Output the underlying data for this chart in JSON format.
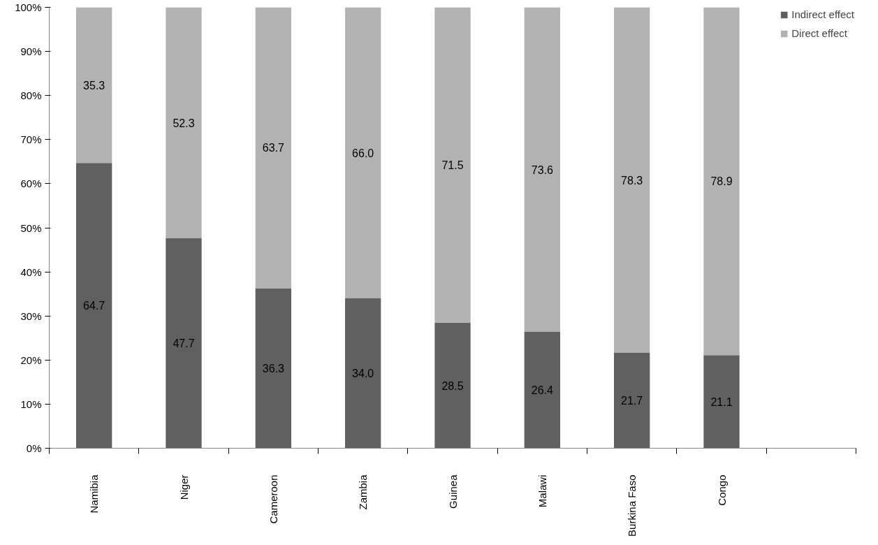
{
  "chart_data": {
    "type": "bar",
    "stacked": true,
    "categories": [
      "Namibia",
      "Niger",
      "Cameroon",
      "Zambia",
      "Guinea",
      "Malawi",
      "Burkina Faso",
      "Congo",
      null
    ],
    "series": [
      {
        "name": "Indirect effect",
        "color": "#606060",
        "values": [
          64.7,
          47.7,
          36.3,
          34.0,
          28.5,
          26.4,
          21.7,
          21.1,
          null
        ],
        "value_labels": [
          "64.7",
          "47.7",
          "36.3",
          "34.0",
          "28.5",
          "26.4",
          "21.7",
          "21.1",
          null
        ]
      },
      {
        "name": "Direct effect",
        "color": "#b2b2b2",
        "values": [
          35.3,
          52.3,
          63.7,
          66.0,
          71.5,
          73.6,
          78.3,
          78.9,
          null
        ],
        "value_labels": [
          "35.3",
          "52.3",
          "63.7",
          "66.0",
          "71.5",
          "73.6",
          "78.3",
          "78.9",
          null
        ]
      }
    ],
    "ylim": [
      0,
      100
    ],
    "yticks": [
      {
        "value": 0,
        "label": "0%"
      },
      {
        "value": 10,
        "label": "10%"
      },
      {
        "value": 20,
        "label": "20%"
      },
      {
        "value": 30,
        "label": "30%"
      },
      {
        "value": 40,
        "label": "40%"
      },
      {
        "value": 50,
        "label": "50%"
      },
      {
        "value": 60,
        "label": "60%"
      },
      {
        "value": 70,
        "label": "70%"
      },
      {
        "value": 80,
        "label": "80%"
      },
      {
        "value": 90,
        "label": "90%"
      },
      {
        "value": 100,
        "label": "100%"
      }
    ],
    "grid": false,
    "legend": "top right"
  }
}
